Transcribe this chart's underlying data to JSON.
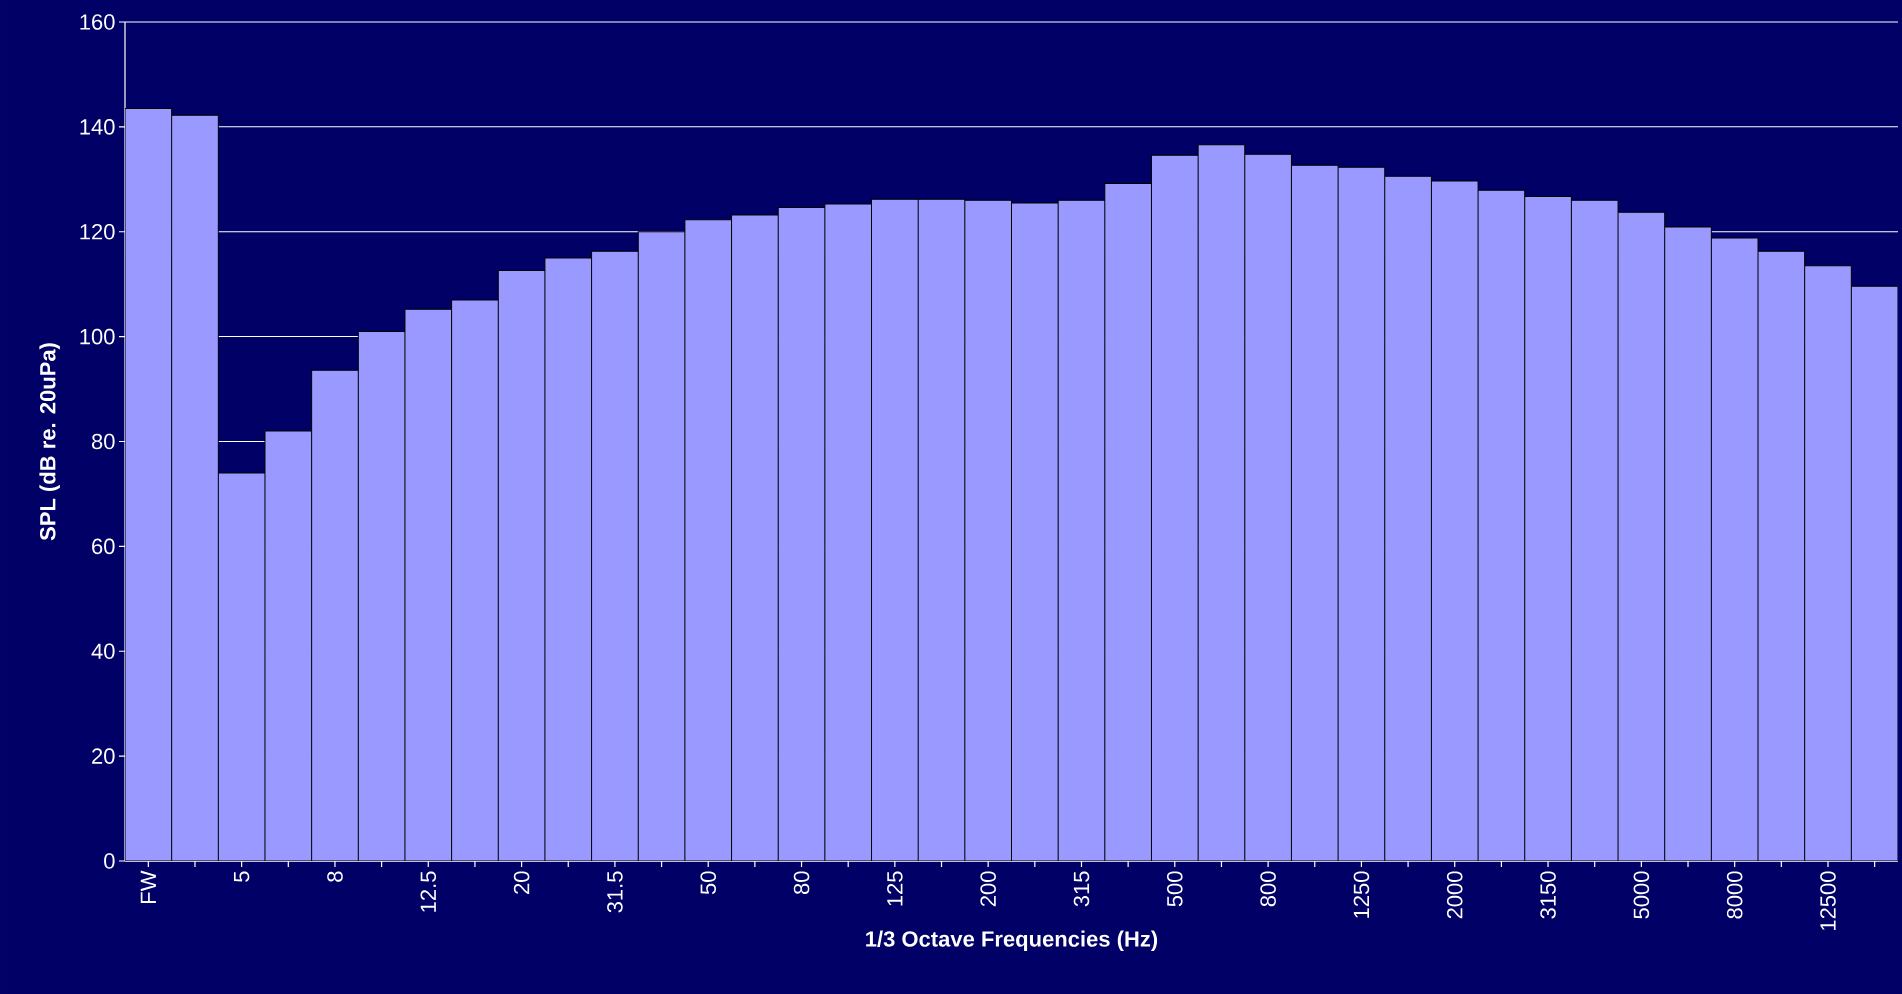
{
  "chart_data": {
    "type": "bar",
    "xlabel": "1/3 Octave Frequencies (Hz)",
    "ylabel": "SPL (dB re. 20uPa)",
    "categories": [
      "FW",
      null,
      "5",
      null,
      "8",
      null,
      "12.5",
      null,
      "20",
      null,
      "31.5",
      null,
      "50",
      null,
      "80",
      null,
      "125",
      null,
      "200",
      null,
      "315",
      null,
      "500",
      null,
      "800",
      null,
      "1250",
      null,
      "2000",
      null,
      "3150",
      null,
      "5000",
      null,
      "8000",
      null,
      "12500",
      null
    ],
    "values": [
      143.5,
      142.2,
      74,
      82,
      93.6,
      101,
      105.2,
      107,
      112.6,
      115,
      116.3,
      120,
      122.3,
      123.2,
      124.6,
      125.3,
      126.2,
      126.2,
      126,
      125.5,
      126,
      129.2,
      134.6,
      136.6,
      134.8,
      132.7,
      132.3,
      130.6,
      129.7,
      127.9,
      126.7,
      126,
      123.7,
      120.9,
      118.8,
      116.3,
      113.5,
      109.6
    ],
    "color": "#9999ff",
    "ylim": [
      0,
      160
    ],
    "yticks": [
      0,
      20,
      40,
      60,
      80,
      100,
      120,
      140,
      160
    ],
    "grid": "y"
  }
}
